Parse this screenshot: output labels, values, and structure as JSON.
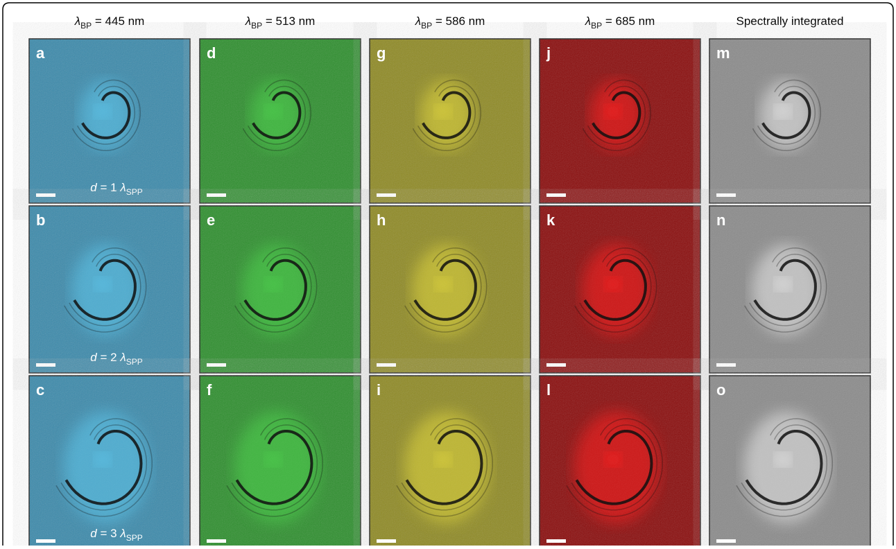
{
  "columns": [
    {
      "symbol": "λ",
      "subscript": "BP",
      "text": " = 445 nm"
    },
    {
      "symbol": "λ",
      "subscript": "BP",
      "text": " = 513 nm"
    },
    {
      "symbol": "λ",
      "subscript": "BP",
      "text": " = 586 nm"
    },
    {
      "symbol": "λ",
      "subscript": "BP",
      "text": " = 685 nm"
    },
    {
      "text": "Spectrally integrated"
    }
  ],
  "panels": [
    [
      "a",
      "b",
      "c"
    ],
    [
      "d",
      "e",
      "f"
    ],
    [
      "g",
      "h",
      "i"
    ],
    [
      "j",
      "k",
      "l"
    ],
    [
      "m",
      "n",
      "o"
    ]
  ],
  "rows": [
    {
      "variable": "d",
      "text": " = 1 ",
      "symbol": "λ",
      "subscript": "SPP"
    },
    {
      "variable": "d",
      "text": " = 2 ",
      "symbol": "λ",
      "subscript": "SPP"
    },
    {
      "variable": "d",
      "text": " = 3 ",
      "symbol": "λ",
      "subscript": "SPP"
    }
  ]
}
